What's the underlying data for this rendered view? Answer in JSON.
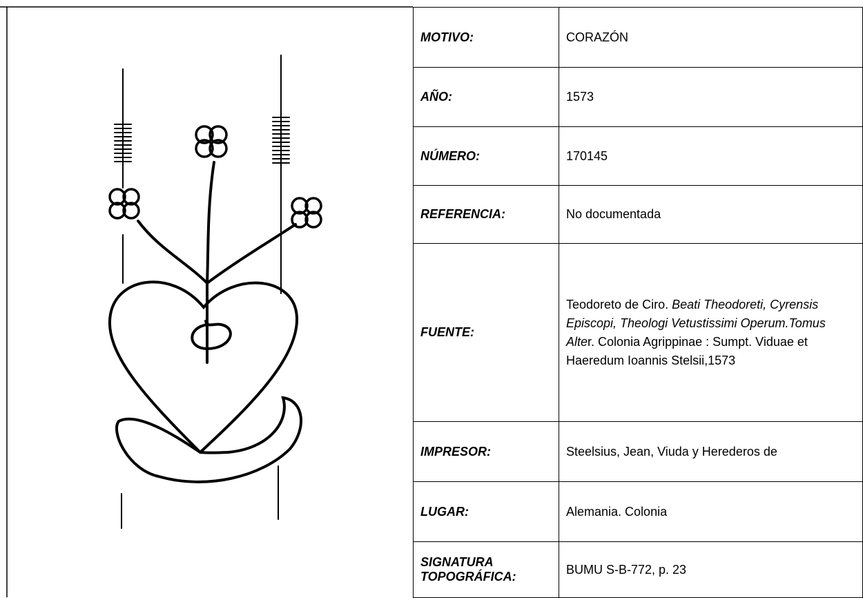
{
  "rows": [
    {
      "label": "MOTIVO:",
      "value": "CORAZÓN"
    },
    {
      "label": "AÑO:",
      "value": "1573"
    },
    {
      "label": "NÚMERO:",
      "value": "170145"
    },
    {
      "label": "REFERENCIA:",
      "value": "No documentada"
    },
    {
      "label": "FUENTE:",
      "parts": [
        {
          "text": "Teodoreto de Ciro. ",
          "italic": false
        },
        {
          "text": "Beati Theodoreti, Cyrensis Episcopi, Theologi Vetustissimi Operum.Tomus Alte",
          "italic": true
        },
        {
          "text": "r. Colonia Agrippinae : Sumpt. Viduae et Haeredum Ioannis Stelsii,1573",
          "italic": false
        }
      ]
    },
    {
      "label": "IMPRESOR:",
      "value": "Steelsius, Jean, Viuda y Herederos de"
    },
    {
      "label": "LUGAR:",
      "value": "Alemania. Colonia"
    },
    {
      "label": "SIGNATURA TOPOGRÁFICA:",
      "value": "BUMU S-B-772, p. 23"
    }
  ]
}
